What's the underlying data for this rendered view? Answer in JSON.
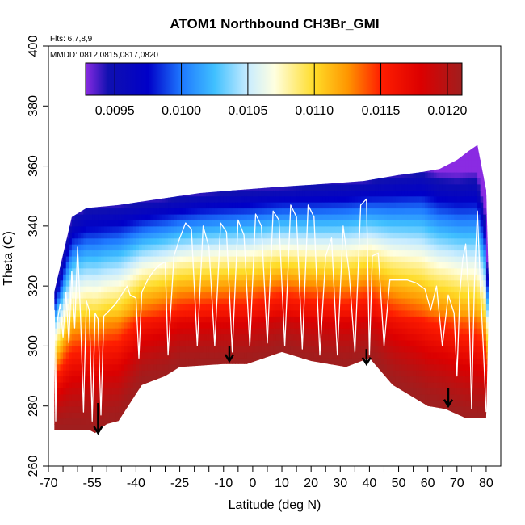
{
  "chart_data": {
    "type": "heatmap",
    "title": "ATOM1 Northbound CH3Br_GMI",
    "flights_note": "Flts: 6,7,8,9",
    "dates_note": "MMDD: 0812,0815,0817,0820",
    "xlabel": "Latitude (deg N)",
    "ylabel": "Theta (C)",
    "xlim": [
      -70,
      85
    ],
    "ylim": [
      260,
      400
    ],
    "x_ticks": [
      -70,
      -55,
      -40,
      -25,
      -10,
      0,
      10,
      20,
      30,
      40,
      50,
      60,
      70,
      80
    ],
    "x_tick_labels": [
      "-70",
      "-55",
      "-40",
      "-25",
      "-10",
      "0",
      "10",
      "20",
      "30",
      "40",
      "50",
      "60",
      "70",
      "80"
    ],
    "x_minor_step": 5,
    "y_ticks": [
      260,
      280,
      300,
      320,
      340,
      360,
      380,
      400
    ],
    "y_tick_labels": [
      "260",
      "280",
      "300",
      "320",
      "340",
      "360",
      "380",
      "400"
    ],
    "colorbar": {
      "min": 0.00928,
      "max": 0.01211,
      "ticks": [
        0.0095,
        0.01,
        0.0105,
        0.011,
        0.0115,
        0.012
      ],
      "tick_labels": [
        "0.0095",
        "0.0100",
        "0.0105",
        "0.0110",
        "0.0115",
        "0.0120"
      ],
      "stops": [
        {
          "value": 0.00928,
          "color": "#8a2be2"
        },
        {
          "value": 0.00945,
          "color": "#1010b0"
        },
        {
          "value": 0.00975,
          "color": "#0000c8"
        },
        {
          "value": 0.01,
          "color": "#1e78ff"
        },
        {
          "value": 0.01025,
          "color": "#40c0ff"
        },
        {
          "value": 0.0105,
          "color": "#c8ecff"
        },
        {
          "value": 0.0107,
          "color": "#ffffe0"
        },
        {
          "value": 0.011,
          "color": "#ffdc28"
        },
        {
          "value": 0.01125,
          "color": "#ff9600"
        },
        {
          "value": 0.0115,
          "color": "#ff1e00"
        },
        {
          "value": 0.0118,
          "color": "#dc0000"
        },
        {
          "value": 0.01211,
          "color": "#a01e1e"
        }
      ]
    },
    "field_description": "Curtain of GMI model CH3Br (approx. 0.0093 to 0.0121) vs latitude and potential temperature; high values (red) near surface, decreasing upward to blue/purple near 360-367 C",
    "surface_floor": [
      {
        "lat": -68,
        "theta": 272
      },
      {
        "lat": -56,
        "theta": 272
      },
      {
        "lat": -54,
        "theta": 271
      },
      {
        "lat": -50,
        "theta": 274
      },
      {
        "lat": -46,
        "theta": 275
      },
      {
        "lat": -38,
        "theta": 287
      },
      {
        "lat": -30,
        "theta": 290
      },
      {
        "lat": -25,
        "theta": 293
      },
      {
        "lat": -10,
        "theta": 294
      },
      {
        "lat": -2,
        "theta": 294
      },
      {
        "lat": 10,
        "theta": 298
      },
      {
        "lat": 20,
        "theta": 295
      },
      {
        "lat": 32,
        "theta": 293
      },
      {
        "lat": 40,
        "theta": 296
      },
      {
        "lat": 48,
        "theta": 287
      },
      {
        "lat": 60,
        "theta": 280
      },
      {
        "lat": 66,
        "theta": 279
      },
      {
        "lat": 73,
        "theta": 276
      },
      {
        "lat": 80,
        "theta": 276
      }
    ],
    "top_boundary": [
      {
        "lat": -68,
        "theta": 318
      },
      {
        "lat": -62,
        "theta": 343
      },
      {
        "lat": -57,
        "theta": 346
      },
      {
        "lat": -46,
        "theta": 347
      },
      {
        "lat": -32,
        "theta": 349
      },
      {
        "lat": -18,
        "theta": 351
      },
      {
        "lat": -5,
        "theta": 352
      },
      {
        "lat": 8,
        "theta": 353
      },
      {
        "lat": 24,
        "theta": 354
      },
      {
        "lat": 38,
        "theta": 355
      },
      {
        "lat": 50,
        "theta": 357
      },
      {
        "lat": 58,
        "theta": 358
      },
      {
        "lat": 64,
        "theta": 359
      },
      {
        "lat": 70,
        "theta": 362
      },
      {
        "lat": 74,
        "theta": 365
      },
      {
        "lat": 77,
        "theta": 367
      },
      {
        "lat": 80,
        "theta": 352
      },
      {
        "lat": 81,
        "theta": 318
      }
    ],
    "flight_track": [
      {
        "lat": -68,
        "theta": 312
      },
      {
        "lat": -67.5,
        "theta": 275
      },
      {
        "lat": -67,
        "theta": 308
      },
      {
        "lat": -66,
        "theta": 314
      },
      {
        "lat": -65,
        "theta": 303
      },
      {
        "lat": -64,
        "theta": 318
      },
      {
        "lat": -63,
        "theta": 301
      },
      {
        "lat": -62,
        "theta": 325
      },
      {
        "lat": -61,
        "theta": 306
      },
      {
        "lat": -60,
        "theta": 333
      },
      {
        "lat": -59,
        "theta": 310
      },
      {
        "lat": -58,
        "theta": 278
      },
      {
        "lat": -57,
        "theta": 315
      },
      {
        "lat": -56,
        "theta": 312
      },
      {
        "lat": -55,
        "theta": 275
      },
      {
        "lat": -54,
        "theta": 311
      },
      {
        "lat": -53,
        "theta": 309
      },
      {
        "lat": -52,
        "theta": 277
      },
      {
        "lat": -51,
        "theta": 310
      },
      {
        "lat": -49,
        "theta": 312
      },
      {
        "lat": -47,
        "theta": 314
      },
      {
        "lat": -45,
        "theta": 317
      },
      {
        "lat": -43,
        "theta": 320
      },
      {
        "lat": -42,
        "theta": 317
      },
      {
        "lat": -40,
        "theta": 316
      },
      {
        "lat": -39,
        "theta": 296
      },
      {
        "lat": -38,
        "theta": 318
      },
      {
        "lat": -36,
        "theta": 322
      },
      {
        "lat": -34,
        "theta": 325
      },
      {
        "lat": -32,
        "theta": 327
      },
      {
        "lat": -30,
        "theta": 328
      },
      {
        "lat": -29,
        "theta": 297
      },
      {
        "lat": -27,
        "theta": 330
      },
      {
        "lat": -25,
        "theta": 336
      },
      {
        "lat": -23,
        "theta": 341
      },
      {
        "lat": -21,
        "theta": 339
      },
      {
        "lat": -19,
        "theta": 300
      },
      {
        "lat": -17,
        "theta": 340
      },
      {
        "lat": -15,
        "theta": 333
      },
      {
        "lat": -13,
        "theta": 300
      },
      {
        "lat": -11,
        "theta": 341
      },
      {
        "lat": -9,
        "theta": 338
      },
      {
        "lat": -7,
        "theta": 298
      },
      {
        "lat": -5,
        "theta": 342
      },
      {
        "lat": -3,
        "theta": 337
      },
      {
        "lat": -1,
        "theta": 300
      },
      {
        "lat": 1,
        "theta": 344
      },
      {
        "lat": 3,
        "theta": 340
      },
      {
        "lat": 5,
        "theta": 301
      },
      {
        "lat": 7,
        "theta": 345
      },
      {
        "lat": 9,
        "theta": 342
      },
      {
        "lat": 11,
        "theta": 300
      },
      {
        "lat": 13,
        "theta": 347
      },
      {
        "lat": 15,
        "theta": 343
      },
      {
        "lat": 17,
        "theta": 299
      },
      {
        "lat": 19,
        "theta": 347
      },
      {
        "lat": 21,
        "theta": 343
      },
      {
        "lat": 23,
        "theta": 297
      },
      {
        "lat": 25,
        "theta": 330
      },
      {
        "lat": 27,
        "theta": 336
      },
      {
        "lat": 29,
        "theta": 297
      },
      {
        "lat": 31,
        "theta": 340
      },
      {
        "lat": 33,
        "theta": 325
      },
      {
        "lat": 35,
        "theta": 298
      },
      {
        "lat": 37,
        "theta": 347
      },
      {
        "lat": 39,
        "theta": 349
      },
      {
        "lat": 40,
        "theta": 297
      },
      {
        "lat": 41,
        "theta": 330
      },
      {
        "lat": 43,
        "theta": 331
      },
      {
        "lat": 45,
        "theta": 300
      },
      {
        "lat": 47,
        "theta": 322
      },
      {
        "lat": 50,
        "theta": 322
      },
      {
        "lat": 53,
        "theta": 322
      },
      {
        "lat": 56,
        "theta": 321
      },
      {
        "lat": 59,
        "theta": 319
      },
      {
        "lat": 61,
        "theta": 312
      },
      {
        "lat": 63,
        "theta": 320
      },
      {
        "lat": 65,
        "theta": 300
      },
      {
        "lat": 67,
        "theta": 317
      },
      {
        "lat": 69,
        "theta": 311
      },
      {
        "lat": 70,
        "theta": 290
      },
      {
        "lat": 71,
        "theta": 318
      },
      {
        "lat": 72,
        "theta": 329
      },
      {
        "lat": 73,
        "theta": 334
      },
      {
        "lat": 74,
        "theta": 318
      },
      {
        "lat": 75,
        "theta": 279
      },
      {
        "lat": 76,
        "theta": 322
      },
      {
        "lat": 77,
        "theta": 345
      },
      {
        "lat": 78,
        "theta": 320
      },
      {
        "lat": 79,
        "theta": 300
      },
      {
        "lat": 80,
        "theta": 278
      }
    ],
    "arrows": [
      {
        "lat": -53,
        "theta_top": 281,
        "theta_tip": 271
      },
      {
        "lat": -8,
        "theta_top": 300,
        "theta_tip": 295
      },
      {
        "lat": 39,
        "theta_top": 299,
        "theta_tip": 294
      },
      {
        "lat": 67,
        "theta_top": 286,
        "theta_tip": 280
      }
    ]
  }
}
